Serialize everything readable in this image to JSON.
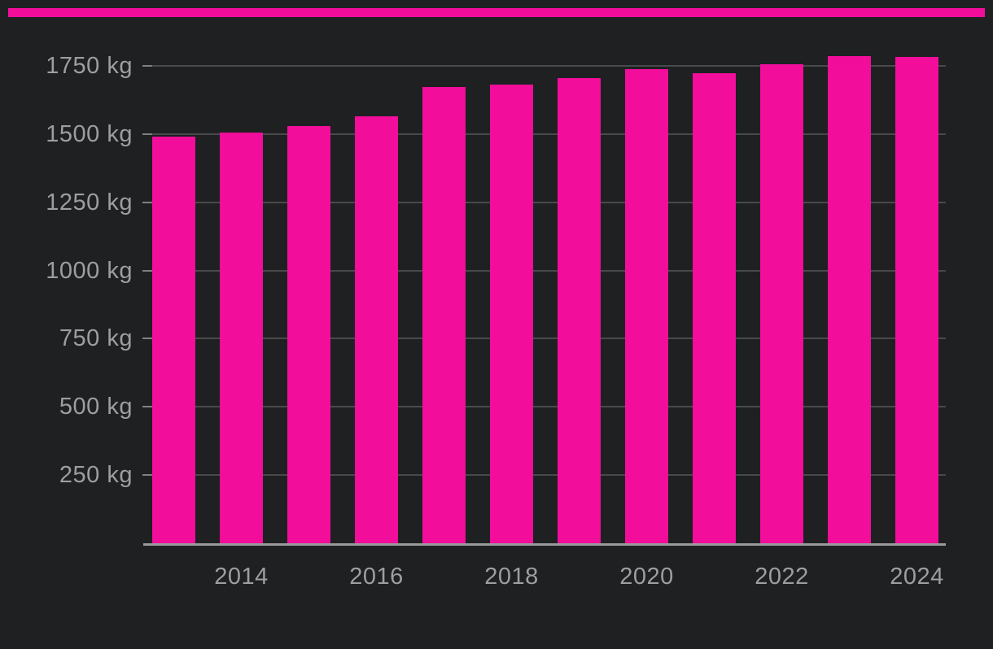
{
  "colors": {
    "background": "#1e2022",
    "accent_pink": "#f20d9a",
    "gridline": "#48494b",
    "tick": "#7f8082",
    "axis_line": "#9a9a9c",
    "label_text": "#9d9ea1"
  },
  "chart_data": {
    "type": "bar",
    "title": "",
    "xlabel": "",
    "ylabel": "",
    "unit": "kg",
    "categories": [
      2013,
      2014,
      2015,
      2016,
      2017,
      2018,
      2019,
      2020,
      2021,
      2022,
      2023,
      2024
    ],
    "values": [
      1490,
      1505,
      1530,
      1566,
      1673,
      1682,
      1705,
      1737,
      1724,
      1756,
      1785,
      1782
    ],
    "bar_color": "#f20d9a",
    "y_ticks": [
      250,
      500,
      750,
      1000,
      1250,
      1500,
      1750
    ],
    "y_tick_labels": [
      "250 kg",
      "500 kg",
      "750 kg",
      "1000 kg",
      "1250 kg",
      "1500 kg",
      "1750 kg"
    ],
    "x_tick_labels": [
      "2014",
      "2016",
      "2018",
      "2020",
      "2022",
      "2024"
    ],
    "ylim": [
      0,
      1990
    ],
    "grid": "horizontal",
    "legend": "none"
  }
}
